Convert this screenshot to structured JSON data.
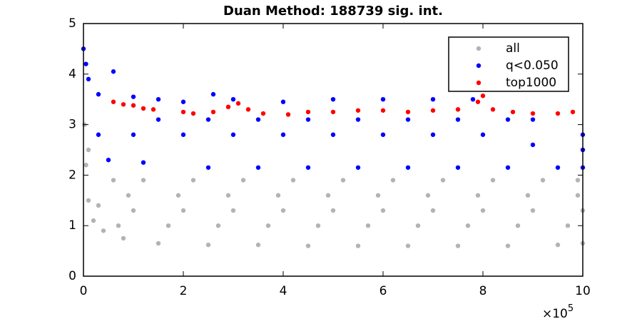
{
  "chart_data": {
    "type": "scatter",
    "title": "Duan Method: 188739 sig. int.",
    "x_exponent_base": "×10",
    "x_exponent": "5",
    "xlim": [
      0,
      10
    ],
    "xticks": [
      0,
      2,
      4,
      6,
      8,
      10
    ],
    "ylim": [
      0,
      5
    ],
    "yticks": [
      0,
      1,
      2,
      3,
      4,
      5
    ],
    "legend_position": "upper right",
    "series": [
      {
        "name": "all",
        "color": "#b3b3b3",
        "x": [
          0.05,
          0.1,
          0.2,
          0.4,
          0.8,
          1.5,
          2.5,
          3.5,
          4.5,
          5.5,
          6.5,
          7.5,
          8.5,
          9.5,
          10,
          0.02,
          0.3,
          1,
          2,
          3,
          4,
          5,
          6,
          7,
          8,
          9,
          10,
          0.1,
          0.6,
          1.2,
          2.2,
          3.2,
          4.2,
          5.2,
          6.2,
          7.2,
          8.2,
          9.2,
          9.9,
          0.7,
          1.7,
          2.7,
          3.7,
          4.7,
          5.7,
          6.7,
          7.7,
          8.7,
          9.7,
          0.9,
          1.9,
          2.9,
          3.9,
          4.9,
          5.9,
          6.9,
          7.9,
          8.9,
          9.9
        ],
        "values": [
          2.2,
          1.5,
          1.1,
          0.9,
          0.75,
          0.65,
          0.62,
          0.62,
          0.6,
          0.6,
          0.6,
          0.6,
          0.6,
          0.62,
          0.65,
          3.0,
          1.4,
          1.3,
          1.3,
          1.3,
          1.3,
          1.3,
          1.3,
          1.3,
          1.3,
          1.3,
          1.3,
          2.5,
          1.9,
          1.9,
          1.9,
          1.9,
          1.9,
          1.9,
          1.9,
          1.9,
          1.9,
          1.9,
          1.9,
          1.0,
          1.0,
          1.0,
          1.0,
          1.0,
          1.0,
          1.0,
          1.0,
          1.0,
          1.0,
          1.6,
          1.6,
          1.6,
          1.6,
          1.6,
          1.6,
          1.6,
          1.6,
          1.6,
          1.6
        ]
      },
      {
        "name": "q<0.050",
        "color": "#0000ff",
        "x": [
          0,
          0.05,
          0.1,
          0.3,
          0.6,
          1,
          1.5,
          2,
          2.6,
          3,
          4,
          5,
          6,
          7,
          7.8,
          9,
          10,
          0.3,
          1,
          2,
          3,
          4,
          5,
          6,
          7,
          8,
          9,
          10,
          0.5,
          1.2,
          2.5,
          3.5,
          4.5,
          5.5,
          6.5,
          7.5,
          8.5,
          9.5,
          10,
          1.5,
          2.5,
          3.5,
          4.5,
          5.5,
          6.5,
          7.5,
          8.5
        ],
        "values": [
          4.5,
          4.2,
          3.9,
          3.6,
          4.05,
          3.55,
          3.5,
          3.45,
          3.6,
          3.5,
          3.45,
          3.5,
          3.5,
          3.5,
          3.5,
          3.1,
          2.8,
          2.8,
          2.8,
          2.8,
          2.8,
          2.8,
          2.8,
          2.8,
          2.8,
          2.8,
          2.6,
          2.5,
          2.3,
          2.25,
          2.15,
          2.15,
          2.15,
          2.15,
          2.15,
          2.15,
          2.15,
          2.15,
          2.15,
          3.1,
          3.1,
          3.1,
          3.1,
          3.1,
          3.1,
          3.1,
          3.1
        ]
      },
      {
        "name": "top1000",
        "color": "#ff0000",
        "x": [
          0.6,
          0.8,
          1,
          1.2,
          1.4,
          2,
          2.2,
          2.6,
          2.9,
          3.1,
          3.3,
          3.6,
          4.1,
          4.5,
          5,
          5.5,
          6,
          6.5,
          7,
          7.5,
          7.9,
          8,
          8.2,
          8.6,
          9,
          9.5,
          9.8
        ],
        "values": [
          3.45,
          3.4,
          3.38,
          3.32,
          3.3,
          3.25,
          3.22,
          3.25,
          3.35,
          3.42,
          3.3,
          3.22,
          3.2,
          3.25,
          3.25,
          3.28,
          3.28,
          3.25,
          3.28,
          3.3,
          3.45,
          3.57,
          3.3,
          3.25,
          3.22,
          3.22,
          3.25
        ]
      }
    ]
  }
}
